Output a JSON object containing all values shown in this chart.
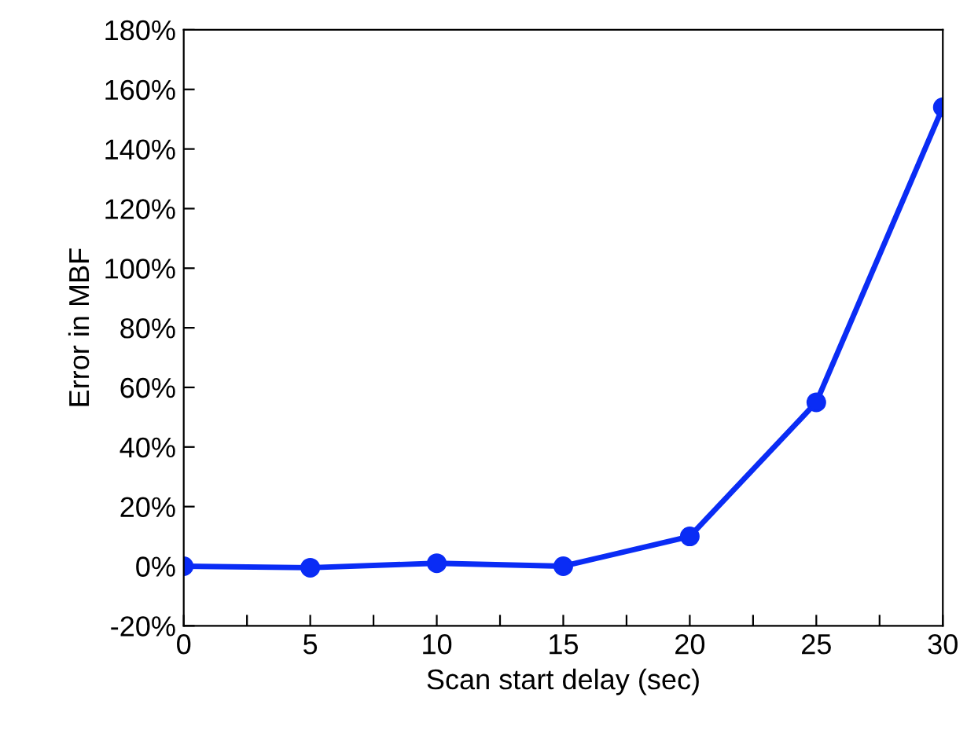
{
  "chart_data": {
    "type": "line",
    "xlabel": "Scan start delay (sec)",
    "ylabel": "Error in MBF",
    "x": [
      0,
      5,
      10,
      15,
      20,
      25,
      30
    ],
    "series": [
      {
        "color": "#0a2cf5",
        "values": [
          0,
          -0.5,
          1,
          0,
          10,
          55,
          154
        ]
      }
    ],
    "marker": "circle",
    "line_style": "solid",
    "grid": false,
    "legend": false,
    "xlim": [
      0,
      30
    ],
    "xticks": [
      0,
      {
        "value": 2.5,
        "label": null
      },
      5,
      {
        "value": 7.5,
        "label": null
      },
      10,
      {
        "value": 12.5,
        "label": null
      },
      15,
      {
        "value": 17.5,
        "label": null
      },
      20,
      {
        "value": 22.5,
        "label": null
      },
      25,
      {
        "value": 27.5,
        "label": null
      },
      30
    ],
    "ylim": [
      -20,
      180
    ],
    "yticks": [
      {
        "value": -20,
        "label": "-20%"
      },
      {
        "value": 0,
        "label": "0%"
      },
      {
        "value": 20,
        "label": "20%"
      },
      {
        "value": 40,
        "label": "40%"
      },
      {
        "value": 60,
        "label": "60%"
      },
      {
        "value": 80,
        "label": "80%"
      },
      {
        "value": 100,
        "label": "100%"
      },
      {
        "value": 120,
        "label": "120%"
      },
      {
        "value": 140,
        "label": "140%"
      },
      {
        "value": 160,
        "label": "160%"
      },
      {
        "value": 180,
        "label": "180%"
      }
    ]
  }
}
